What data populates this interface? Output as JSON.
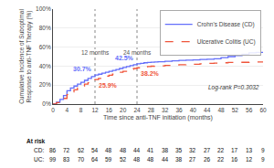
{
  "chart_data": {
    "type": "step",
    "x": [
      0,
      1,
      2,
      3,
      4,
      5,
      6,
      7,
      8,
      9,
      10,
      11,
      12,
      13,
      14,
      15,
      16,
      17,
      18,
      19,
      20,
      21,
      22,
      23,
      24,
      25,
      26,
      27,
      28,
      29,
      30,
      32,
      34,
      36,
      38,
      40,
      42,
      44,
      46,
      48,
      50,
      52,
      54,
      56,
      58,
      60
    ],
    "series": [
      {
        "name": "Crohn's Disease (CD)",
        "line_style": "solid",
        "values": [
          0,
          2,
          5,
          9,
          14,
          17,
          19,
          21,
          23,
          25,
          27,
          29,
          30.7,
          31.5,
          32.5,
          33.5,
          34.5,
          35.5,
          36.5,
          37.5,
          38.5,
          39.5,
          40.5,
          41.5,
          42.5,
          43.0,
          43.5,
          43.8,
          44.2,
          44.4,
          44.5,
          45.0,
          45.5,
          46.0,
          46.3,
          46.5,
          47.0,
          47.2,
          47.8,
          49.0,
          50.0,
          51.0,
          52.5,
          54.0,
          54.5,
          55.0
        ]
      },
      {
        "name": "Ulcerative Colitis (UC)",
        "line_style": "dashed",
        "values": [
          0,
          1.5,
          3,
          6,
          10,
          13,
          15,
          17,
          19,
          21,
          22.5,
          24.0,
          25.9,
          27.0,
          28.5,
          29.5,
          30.5,
          31.5,
          32.5,
          33.5,
          34.5,
          35.5,
          36.5,
          37.5,
          38.2,
          38.8,
          39.2,
          39.6,
          39.9,
          40.1,
          40.3,
          40.8,
          41.2,
          41.5,
          41.8,
          42.0,
          42.5,
          43.0,
          43.2,
          43.5,
          43.8,
          44.0,
          44.0,
          44.2,
          44.3,
          44.3
        ]
      }
    ],
    "xlabel": "Time since anti-TNF initiation (months)",
    "ylabel": "Cumulative Incidence of Suboptimal\nResponse to anti-TNF Therapy (%)",
    "xlim": [
      0,
      60
    ],
    "ylim": [
      0,
      100
    ],
    "xticks": [
      0,
      4,
      8,
      12,
      16,
      20,
      24,
      28,
      32,
      36,
      40,
      44,
      48,
      52,
      56,
      60
    ],
    "yticks": [
      {
        "value": 0,
        "label": "0%"
      },
      {
        "value": 20,
        "label": "20%"
      },
      {
        "value": 40,
        "label": "40%"
      },
      {
        "value": 60,
        "label": "60%"
      },
      {
        "value": 80,
        "label": "80%"
      },
      {
        "value": 100,
        "label": "100%"
      }
    ],
    "grid": "y",
    "legend": "upper right",
    "vlines": [
      {
        "x": 12,
        "label": "12 months"
      },
      {
        "x": 24,
        "label": "24 months"
      }
    ],
    "annotations": [
      {
        "series": "Crohn's Disease (CD)",
        "x": 12,
        "y": 30.7,
        "text": "30.7%"
      },
      {
        "series": "Ulcerative Colitis (UC)",
        "x": 12,
        "y": 25.9,
        "text": "25.9%"
      },
      {
        "series": "Crohn's Disease (CD)",
        "x": 24,
        "y": 42.5,
        "text": "42.5%"
      },
      {
        "series": "Ulcerative Colitis (UC)",
        "x": 24,
        "y": 38.2,
        "text": "38.2%"
      },
      {
        "text": "Log-rank P=0.3032"
      }
    ],
    "at_risk": {
      "title": "At risk",
      "x": [
        0,
        4,
        8,
        12,
        16,
        20,
        24,
        28,
        32,
        36,
        40,
        44,
        48,
        52,
        56,
        60
      ],
      "rows": [
        {
          "name": "CD:",
          "values": [
            86,
            72,
            62,
            54,
            48,
            48,
            44,
            41,
            38,
            35,
            32,
            27,
            22,
            17,
            13,
            9
          ]
        },
        {
          "name": "UC:",
          "values": [
            99,
            83,
            70,
            64,
            59,
            52,
            48,
            48,
            44,
            38,
            27,
            26,
            22,
            16,
            12,
            9
          ]
        }
      ]
    }
  }
}
